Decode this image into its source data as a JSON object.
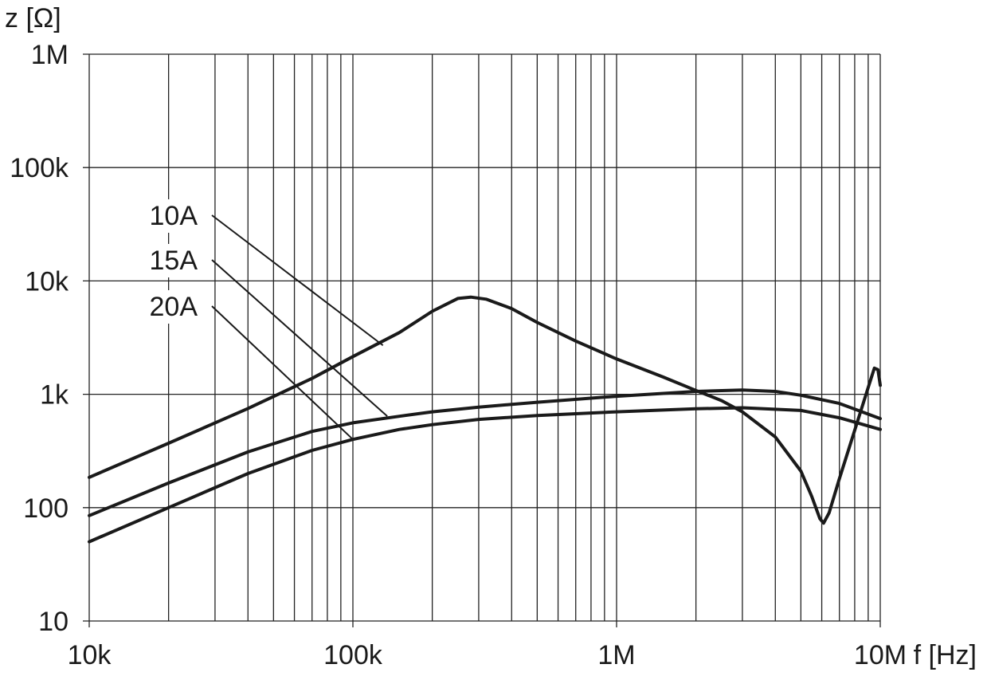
{
  "chart_data": {
    "type": "line",
    "xscale": "log",
    "yscale": "log",
    "xlabel": "f [Hz]",
    "ylabel": "z [Ω]",
    "xlim": [
      10000,
      10000000
    ],
    "ylim": [
      10,
      1000000
    ],
    "x_ticks": [
      {
        "value": 10000,
        "label": "10k"
      },
      {
        "value": 100000,
        "label": "100k"
      },
      {
        "value": 1000000,
        "label": "1M"
      },
      {
        "value": 10000000,
        "label": "10M"
      }
    ],
    "y_ticks": [
      {
        "value": 10,
        "label": "10"
      },
      {
        "value": 100,
        "label": "100"
      },
      {
        "value": 1000,
        "label": "1k"
      },
      {
        "value": 10000,
        "label": "10k"
      },
      {
        "value": 100000,
        "label": "100k"
      },
      {
        "value": 1000000,
        "label": "1M"
      }
    ],
    "grid": true,
    "series": [
      {
        "name": "10A",
        "label_anchor": [
          130000,
          2700
        ],
        "points": [
          [
            10000,
            185
          ],
          [
            20000,
            370
          ],
          [
            40000,
            750
          ],
          [
            70000,
            1380
          ],
          [
            100000,
            2150
          ],
          [
            150000,
            3500
          ],
          [
            200000,
            5400
          ],
          [
            250000,
            7000
          ],
          [
            280000,
            7200
          ],
          [
            320000,
            6900
          ],
          [
            400000,
            5700
          ],
          [
            500000,
            4300
          ],
          [
            700000,
            2950
          ],
          [
            1000000,
            2050
          ],
          [
            1500000,
            1420
          ],
          [
            2000000,
            1080
          ],
          [
            2500000,
            880
          ],
          [
            3000000,
            700
          ],
          [
            4000000,
            420
          ],
          [
            5000000,
            210
          ],
          [
            5500000,
            125
          ],
          [
            5900000,
            80
          ],
          [
            6100000,
            73
          ],
          [
            6400000,
            90
          ],
          [
            7000000,
            180
          ],
          [
            8000000,
            480
          ],
          [
            9000000,
            1150
          ],
          [
            9500000,
            1700
          ],
          [
            9800000,
            1650
          ],
          [
            10000000,
            1200
          ]
        ]
      },
      {
        "name": "15A",
        "label_anchor": [
          135000,
          640
        ],
        "points": [
          [
            10000,
            85
          ],
          [
            20000,
            165
          ],
          [
            40000,
            310
          ],
          [
            70000,
            470
          ],
          [
            100000,
            560
          ],
          [
            150000,
            640
          ],
          [
            200000,
            700
          ],
          [
            300000,
            770
          ],
          [
            500000,
            850
          ],
          [
            1000000,
            960
          ],
          [
            2000000,
            1060
          ],
          [
            3000000,
            1090
          ],
          [
            4000000,
            1060
          ],
          [
            5000000,
            980
          ],
          [
            7000000,
            830
          ],
          [
            10000000,
            610
          ]
        ]
      },
      {
        "name": "20A",
        "label_anchor": [
          100000,
          400
        ],
        "points": [
          [
            10000,
            50
          ],
          [
            20000,
            100
          ],
          [
            40000,
            200
          ],
          [
            70000,
            320
          ],
          [
            100000,
            400
          ],
          [
            150000,
            490
          ],
          [
            200000,
            540
          ],
          [
            300000,
            600
          ],
          [
            500000,
            650
          ],
          [
            1000000,
            700
          ],
          [
            2000000,
            745
          ],
          [
            3000000,
            760
          ],
          [
            5000000,
            720
          ],
          [
            7000000,
            620
          ],
          [
            10000000,
            490
          ]
        ]
      }
    ]
  }
}
